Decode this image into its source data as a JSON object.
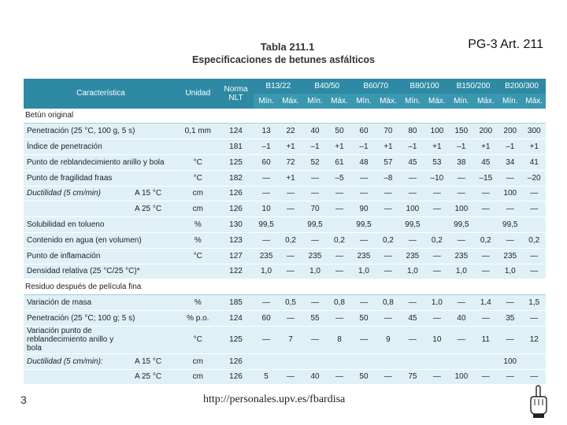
{
  "header": {
    "ref": "PG-3 Art. 211"
  },
  "title": {
    "line1": "Tabla 211.1",
    "line2": "Especificaciones de betunes asfálticos"
  },
  "table": {
    "h_caracteristica": "Característica",
    "h_unidad": "Unidad",
    "h_norma": "Norma NLT",
    "grades": [
      "B13/22",
      "B40/50",
      "B60/70",
      "B80/100",
      "B150/200",
      "B200/300"
    ],
    "min": "Mín.",
    "max": "Máx.",
    "sec1": "Betún original",
    "sec2": "Residuo después de película fina",
    "rows": [
      {
        "c": "Penetración (25 °C, 100 g, 5 s)",
        "s": "",
        "u": "0,1 mm",
        "n": "124",
        "v": [
          "13",
          "22",
          "40",
          "50",
          "60",
          "70",
          "80",
          "100",
          "150",
          "200",
          "200",
          "300"
        ]
      },
      {
        "c": "Índice de penetración",
        "s": "",
        "u": "",
        "n": "181",
        "v": [
          "–1",
          "+1",
          "–1",
          "+1",
          "–1",
          "+1",
          "–1",
          "+1",
          "–1",
          "+1",
          "–1",
          "+1"
        ]
      },
      {
        "c": "Punto de reblandecimiento anillo y bola",
        "s": "",
        "u": "°C",
        "n": "125",
        "v": [
          "60",
          "72",
          "52",
          "61",
          "48",
          "57",
          "45",
          "53",
          "38",
          "45",
          "34",
          "41"
        ]
      },
      {
        "c": "Punto de fragilidad fraas",
        "s": "",
        "u": "°C",
        "n": "182",
        "v": [
          "—",
          "+1",
          "—",
          "–5",
          "—",
          "–8",
          "—",
          "–10",
          "—",
          "–15",
          "—",
          "–20"
        ]
      },
      {
        "c": "Ductilidad (5 cm/min)",
        "s": "A 15 °C",
        "u": "cm",
        "n": "126",
        "v": [
          "—",
          "—",
          "—",
          "—",
          "—",
          "—",
          "—",
          "—",
          "—",
          "—",
          "100",
          "—"
        ]
      },
      {
        "c": "",
        "s": "A 25 °C",
        "u": "cm",
        "n": "126",
        "v": [
          "10",
          "—",
          "70",
          "—",
          "90",
          "—",
          "100",
          "—",
          "100",
          "—",
          "—",
          "—"
        ]
      },
      {
        "c": "Solubilidad en tolueno",
        "s": "",
        "u": "%",
        "n": "130",
        "v": [
          "99,5",
          "",
          "99,5",
          "",
          "99,5",
          "",
          "99,5",
          "",
          "99,5",
          "",
          "99,5",
          ""
        ]
      },
      {
        "c": "Contenido en agua (en volumen)",
        "s": "",
        "u": "%",
        "n": "123",
        "v": [
          "—",
          "0,2",
          "—",
          "0,2",
          "—",
          "0,2",
          "—",
          "0,2",
          "—",
          "0,2",
          "—",
          "0,2"
        ]
      },
      {
        "c": "Punto de inflamación",
        "s": "",
        "u": "°C",
        "n": "127",
        "v": [
          "235",
          "—",
          "235",
          "—",
          "235",
          "—",
          "235",
          "—",
          "235",
          "—",
          "235",
          "—"
        ]
      },
      {
        "c": "Densidad relativa (25 °C/25 °C)*",
        "s": "",
        "u": "",
        "n": "122",
        "v": [
          "1,0",
          "—",
          "1,0",
          "—",
          "1,0",
          "—",
          "1,0",
          "—",
          "1,0",
          "—",
          "1,0",
          "—"
        ]
      },
      {
        "c": "Variación de masa",
        "s": "",
        "u": "%",
        "n": "185",
        "v": [
          "—",
          "0,5",
          "—",
          "0,8",
          "—",
          "0,8",
          "—",
          "1,0",
          "—",
          "1,4",
          "—",
          "1,5"
        ]
      },
      {
        "c": "Penetración (25 °C; 100 g; 5 s)",
        "s": "",
        "u": "% p.o.",
        "n": "124",
        "v": [
          "60",
          "—",
          "55",
          "—",
          "50",
          "—",
          "45",
          "—",
          "40",
          "—",
          "35",
          "—"
        ]
      },
      {
        "c": "Variación punto de reblandecimiento anillo y bola",
        "s": "",
        "u": "°C",
        "n": "125",
        "v": [
          "—",
          "7",
          "—",
          "8",
          "—",
          "9",
          "—",
          "10",
          "—",
          "11",
          "—",
          "12"
        ]
      },
      {
        "c": "Ductilidad (5 cm/min):",
        "s": "A 15 °C",
        "u": "cm",
        "n": "126",
        "v": [
          "",
          "",
          "",
          "",
          "",
          "",
          "",
          "",
          "",
          "",
          "100",
          ""
        ]
      },
      {
        "c": "",
        "s": "A 25 °C",
        "u": "cm",
        "n": "126",
        "v": [
          "5",
          "—",
          "40",
          "—",
          "50",
          "—",
          "75",
          "—",
          "100",
          "—",
          "—",
          "—"
        ]
      }
    ]
  },
  "footer": {
    "page": "3",
    "url": "http://personales.upv.es/fbardisa",
    "hand_icon": "pointing-hand-icon"
  }
}
